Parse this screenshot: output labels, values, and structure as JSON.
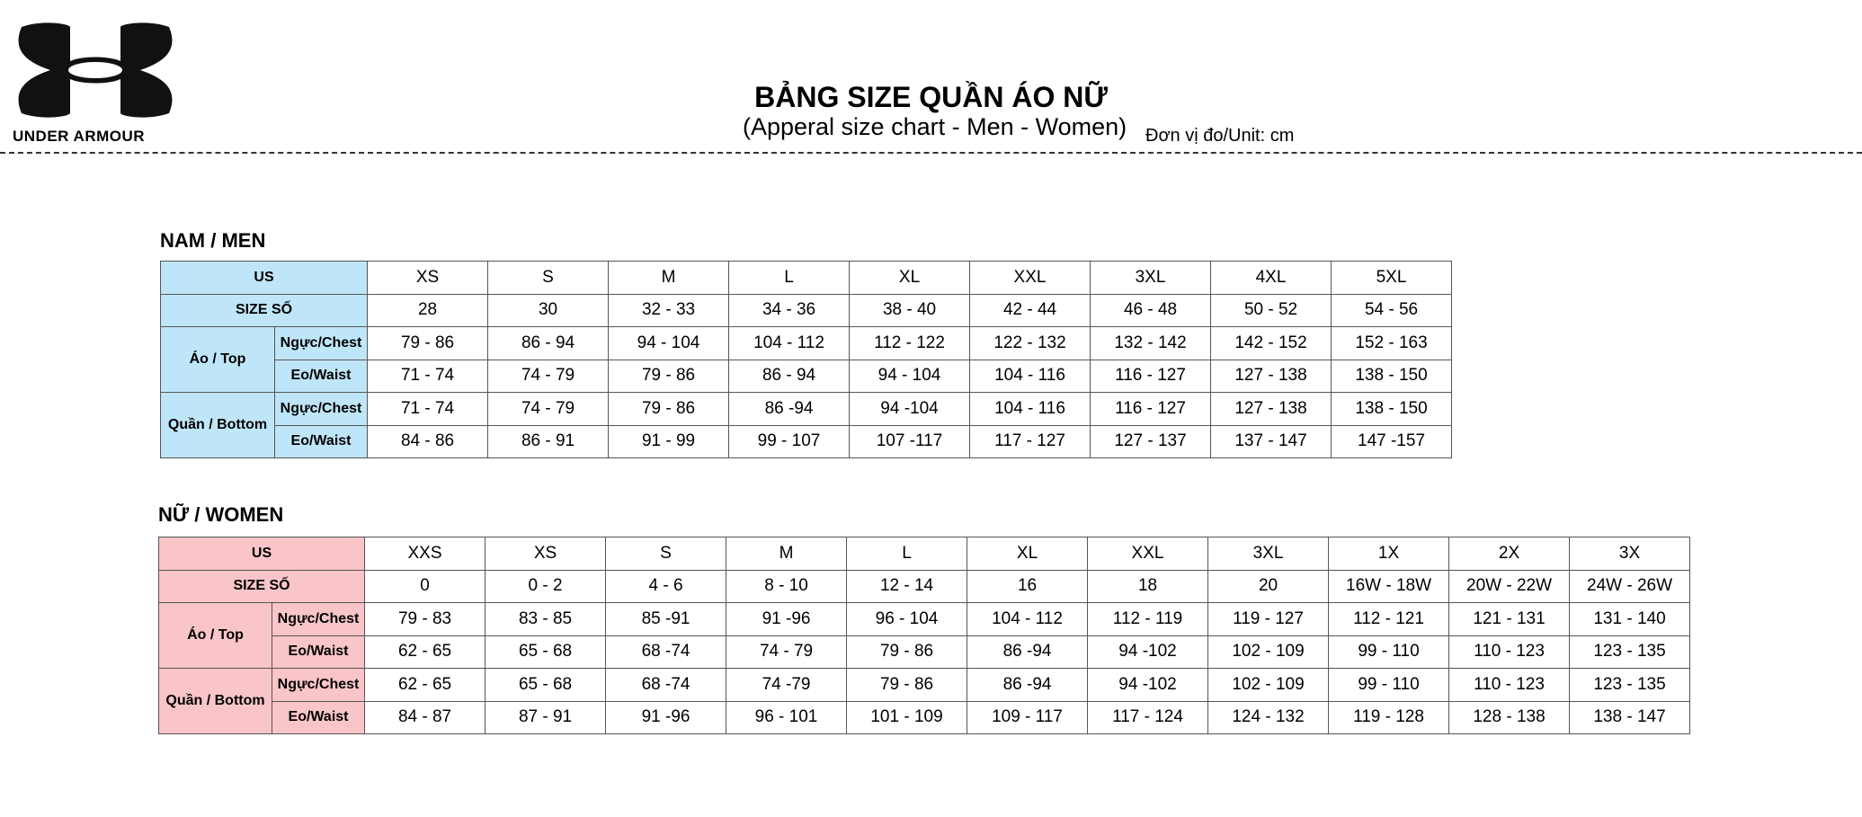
{
  "brand": {
    "name": "UNDER ARMOUR",
    "logo_icon": "under-armour-logo"
  },
  "header": {
    "title": "BẢNG SIZE QUẦN ÁO NỮ",
    "subtitle": "(Apperal size chart - Men - Women)",
    "unit": "Đơn vị đo/Unit: cm"
  },
  "colors": {
    "men_label_bg": "#bfe6f8",
    "women_label_bg": "#f9c5c8"
  },
  "men": {
    "heading": "NAM / MEN",
    "labels": {
      "us": "US",
      "size_so": "SIZE SỐ",
      "top": "Áo / Top",
      "bottom": "Quần / Bottom",
      "chest": "Ngực/Chest",
      "waist": "Eo/Waist"
    },
    "us": [
      "XS",
      "S",
      "M",
      "L",
      "XL",
      "XXL",
      "3XL",
      "4XL",
      "5XL"
    ],
    "size_so": [
      "28",
      "30",
      "32 - 33",
      "34 - 36",
      "38 - 40",
      "42 - 44",
      "46 - 48",
      "50 - 52",
      "54 - 56"
    ],
    "top_chest": [
      "79 - 86",
      "86 - 94",
      "94 - 104",
      "104 - 112",
      "112 - 122",
      "122 - 132",
      "132 - 142",
      "142 - 152",
      "152 - 163"
    ],
    "top_waist": [
      "71 - 74",
      "74 - 79",
      "79 - 86",
      "86 - 94",
      "94 - 104",
      "104 - 116",
      "116 - 127",
      "127 - 138",
      "138 - 150"
    ],
    "bottom_chest": [
      "71 - 74",
      "74 - 79",
      "79 - 86",
      "86 -94",
      "94 -104",
      "104 - 116",
      "116 - 127",
      "127 - 138",
      "138 - 150"
    ],
    "bottom_waist": [
      "84 - 86",
      "86 - 91",
      "91 - 99",
      "99 - 107",
      "107 -117",
      "117 - 127",
      "127 - 137",
      "137 - 147",
      "147 -157"
    ]
  },
  "women": {
    "heading": "NỮ / WOMEN",
    "labels": {
      "us": "US",
      "size_so": "SIZE SỐ",
      "top": "Áo / Top",
      "bottom": "Quần / Bottom",
      "chest": "Ngực/Chest",
      "waist": "Eo/Waist"
    },
    "us": [
      "XXS",
      "XS",
      "S",
      "M",
      "L",
      "XL",
      "XXL",
      "3XL",
      "1X",
      "2X",
      "3X"
    ],
    "size_so": [
      "0",
      "0 - 2",
      "4 - 6",
      "8 - 10",
      "12 - 14",
      "16",
      "18",
      "20",
      "16W - 18W",
      "20W - 22W",
      "24W - 26W"
    ],
    "top_chest": [
      "79 - 83",
      "83 - 85",
      "85 -91",
      "91 -96",
      "96 - 104",
      "104 - 112",
      "112 - 119",
      "119 - 127",
      "112 - 121",
      "121 - 131",
      "131 - 140"
    ],
    "top_waist": [
      "62 - 65",
      "65 - 68",
      "68 -74",
      "74 - 79",
      "79 - 86",
      "86 -94",
      "94 -102",
      "102 - 109",
      "99 - 110",
      "110 - 123",
      "123 - 135"
    ],
    "bottom_chest": [
      "62 - 65",
      "65 - 68",
      "68 -74",
      "74 -79",
      "79 - 86",
      "86 -94",
      "94 -102",
      "102 - 109",
      "99 - 110",
      "110 - 123",
      "123 - 135"
    ],
    "bottom_waist": [
      "84 - 87",
      "87 - 91",
      "91 -96",
      "96 - 101",
      "101 - 109",
      "109 - 117",
      "117 - 124",
      "124 - 132",
      "119 - 128",
      "128 - 138",
      "138 - 147"
    ]
  }
}
